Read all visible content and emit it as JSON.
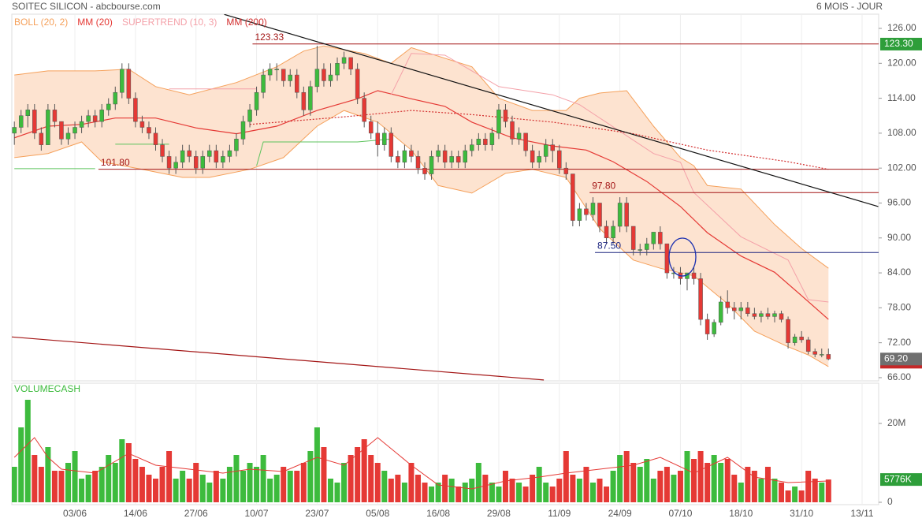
{
  "header": {
    "title": "SOITEC SILICON - abcbourse.com",
    "period": "6 MOIS - JOUR"
  },
  "chart_data": [
    {
      "type": "candlestick",
      "categories": [
        null,
        null,
        null,
        null,
        null,
        null,
        null,
        null,
        null,
        "03/06",
        null,
        null,
        null,
        null,
        null,
        null,
        null,
        null,
        "14/06",
        null,
        null,
        null,
        null,
        null,
        null,
        null,
        null,
        "27/06",
        null,
        null,
        null,
        null,
        null,
        null,
        null,
        null,
        "10/07",
        null,
        null,
        null,
        null,
        null,
        null,
        null,
        null,
        "23/07",
        null,
        null,
        null,
        null,
        null,
        null,
        null,
        null,
        "05/08",
        null,
        null,
        null,
        null,
        null,
        null,
        null,
        null,
        "16/08",
        null,
        null,
        null,
        null,
        null,
        null,
        null,
        null,
        "29/08",
        null,
        null,
        null,
        null,
        null,
        null,
        null,
        null,
        "11/09",
        null,
        null,
        null,
        null,
        null,
        null,
        null,
        null,
        "24/09",
        null,
        null,
        null,
        null,
        null,
        null,
        null,
        null,
        "07/10",
        null,
        null,
        null,
        null,
        null,
        null,
        null,
        null,
        "18/10",
        null,
        null,
        null,
        null,
        null,
        null,
        null,
        null,
        "31/10",
        null,
        null,
        null,
        null,
        null,
        null,
        null,
        null,
        "13/11"
      ],
      "open": [
        108,
        109,
        111,
        112,
        108,
        106,
        112,
        110,
        107,
        108,
        109,
        110,
        111,
        110,
        112,
        113,
        115,
        119,
        114,
        110,
        109,
        108,
        106,
        104,
        102,
        103,
        105,
        104,
        102,
        104,
        105,
        103,
        104,
        105,
        107,
        110,
        112,
        115,
        118,
        119,
        119,
        117,
        118,
        115,
        112,
        116,
        119,
        117,
        118,
        120,
        121,
        119,
        114,
        110,
        108,
        106,
        108,
        104,
        103,
        105,
        104,
        102,
        101,
        104,
        105,
        103,
        104,
        103,
        105,
        106,
        107,
        106,
        108,
        112,
        110,
        107,
        108,
        105,
        103,
        104,
        106,
        105,
        102,
        101,
        93,
        95,
        94,
        96,
        92,
        90,
        92,
        96,
        92,
        88,
        88,
        89,
        91,
        89,
        84,
        84,
        83,
        84,
        83,
        76,
        73.5,
        75.5,
        79,
        78,
        77.5,
        78,
        77,
        76.5,
        77,
        76.5,
        77,
        76,
        72,
        73,
        72.5,
        70.5,
        70,
        70,
        null,
        null,
        null,
        null,
        null
      ],
      "high": [
        110,
        112,
        113,
        113,
        109,
        113,
        113,
        110,
        109,
        110,
        111,
        112,
        112,
        113,
        114,
        116,
        120,
        120,
        115,
        111,
        110,
        109,
        107,
        105,
        104,
        106,
        106,
        105,
        105,
        106,
        106,
        105,
        106,
        108,
        111,
        113,
        116,
        119,
        120,
        120,
        119,
        119,
        119,
        116,
        117,
        123,
        120,
        120,
        121,
        122,
        121,
        120,
        115,
        111,
        110,
        109,
        109,
        105,
        106,
        106,
        105,
        103,
        105,
        106,
        106,
        105,
        105,
        106,
        107,
        108,
        108,
        109,
        113,
        113,
        111,
        109,
        108,
        106,
        105,
        107,
        107,
        106,
        103,
        101,
        96,
        96,
        97,
        96,
        93,
        93,
        97,
        97,
        92,
        89,
        90,
        91,
        92,
        89,
        85,
        85,
        84,
        85,
        84,
        77,
        76,
        80,
        81,
        79,
        79,
        79,
        78,
        77.5,
        78,
        77.5,
        77.5,
        76.5,
        73.5,
        74,
        73,
        71,
        71,
        71,
        null,
        null,
        null,
        null,
        null
      ],
      "low": [
        106,
        108,
        109,
        107,
        105,
        106,
        109,
        106,
        106,
        107,
        108,
        109,
        109,
        109,
        111,
        112,
        114,
        113,
        109,
        108,
        107,
        105,
        103,
        101,
        101,
        102,
        103,
        101,
        101,
        103,
        102,
        102,
        103,
        104,
        106,
        109,
        111,
        114,
        117,
        117,
        116,
        116,
        114,
        111,
        111,
        115,
        116,
        116,
        117,
        119,
        118,
        113,
        109,
        107,
        104,
        105,
        103,
        102,
        102,
        103,
        101,
        100,
        100,
        103,
        102,
        102,
        102,
        102,
        104,
        105,
        105,
        105,
        107,
        109,
        106,
        106,
        104,
        102,
        102,
        103,
        103,
        101,
        100,
        92,
        92,
        93,
        93,
        91,
        89,
        89,
        91,
        91,
        87,
        87,
        87,
        88,
        88,
        83,
        83,
        82,
        81,
        82,
        75,
        72.5,
        73,
        75,
        77,
        76,
        76,
        76.5,
        76,
        75.5,
        76,
        75.5,
        75.5,
        71,
        71.5,
        72,
        70,
        69.5,
        69.5,
        69,
        null,
        null,
        null,
        null,
        null
      ],
      "close": [
        109,
        111,
        112,
        108,
        106,
        112,
        110,
        107,
        108,
        109,
        110,
        111,
        110,
        112,
        113,
        115,
        119,
        114,
        110,
        109,
        108,
        106,
        104,
        102,
        103,
        105,
        104,
        102,
        104,
        105,
        103,
        104,
        105,
        107,
        110,
        112,
        115,
        118,
        119,
        119,
        117,
        118,
        115,
        112,
        116,
        119,
        117,
        118,
        120,
        121,
        119,
        114,
        110,
        108,
        106,
        108,
        104,
        103,
        105,
        104,
        102,
        101,
        104,
        105,
        103,
        104,
        103,
        105,
        106,
        107,
        106,
        108,
        112,
        110,
        107,
        108,
        105,
        103,
        104,
        106,
        105,
        102,
        101,
        93,
        95,
        94,
        96,
        92,
        90,
        92,
        96,
        92,
        88,
        88,
        89,
        91,
        89,
        84,
        84,
        83,
        84,
        83,
        76,
        73.5,
        75.5,
        79,
        78,
        77.5,
        78,
        77,
        76.5,
        77,
        76.5,
        77,
        76,
        72,
        73,
        72.5,
        70.5,
        70,
        70,
        69.2,
        null,
        null,
        null,
        null,
        null
      ],
      "up_color": "#3dbb3d",
      "down_color": "#e53935",
      "ylim": [
        65.45,
        128.44
      ],
      "yticks": [
        {
          "value": 66,
          "label": "66.00"
        },
        {
          "value": 72,
          "label": "72.00"
        },
        {
          "value": 78,
          "label": "78.00"
        },
        {
          "value": 84,
          "label": "84.00"
        },
        {
          "value": 90,
          "label": "90.00"
        },
        {
          "value": 96,
          "label": "96.00"
        },
        {
          "value": 102,
          "label": "102.00"
        },
        {
          "value": 108,
          "label": "108.00"
        },
        {
          "value": 114,
          "label": "114.00"
        },
        {
          "value": 120,
          "label": "120.00"
        },
        {
          "value": 126,
          "label": "126.00"
        }
      ],
      "xgrid": true,
      "indicators": [
        {
          "name": "BOLL (20, 2)",
          "kind": "band",
          "color": "#f5a05a",
          "fill": "#fde3d0",
          "upper": {
            "x": [
              0,
              5,
              12,
              17,
              21,
              26,
              33,
              39,
              43,
              46,
              52,
              56,
              59,
              68,
              72,
              77,
              82,
              84,
              87,
              91,
              95,
              99,
              101,
              103,
              108,
              113,
              117,
              121
            ],
            "values": [
              118,
              118.7,
              118.7,
              119,
              116,
              114.6,
              116.7,
              119.4,
              122.1,
              123,
              121.7,
              120,
              122.7,
              119.4,
              114,
              111.9,
              111.9,
              114,
              114.9,
              115.3,
              109.2,
              103.8,
              102.4,
              99,
              98.4,
              92.3,
              88.2,
              84.8
            ]
          },
          "lower": {
            "x": [
              0,
              5,
              10,
              13,
              19,
              25,
              29,
              35,
              40,
              45,
              49,
              54,
              59,
              63,
              68,
              73,
              77,
              82,
              87,
              92,
              96,
              101,
              106,
              110,
              115,
              118,
              121
            ],
            "values": [
              103.8,
              104.5,
              106.5,
              103.1,
              101.8,
              100.4,
              100.4,
              101.8,
              103.8,
              109.2,
              111.9,
              109.9,
              105.1,
              99,
              97.7,
              101.1,
              101.8,
              100.4,
              91.6,
              86.2,
              84.8,
              83.5,
              78.7,
              74,
              71.3,
              69.9,
              67.9
            ]
          }
        },
        {
          "name": "MM (20)",
          "kind": "line",
          "color": "#e53935",
          "x": [
            0,
            5,
            10,
            15,
            21,
            27,
            33,
            39,
            45,
            51,
            54,
            59,
            64,
            68,
            74,
            80,
            85,
            89,
            94,
            99,
            103,
            108,
            113,
            117,
            121
          ],
          "values": [
            107.2,
            109.2,
            109.5,
            110.6,
            110.6,
            108.9,
            107.9,
            109.2,
            111.9,
            113.9,
            115.3,
            113.9,
            112.6,
            109.9,
            107.2,
            105.8,
            105.1,
            103.1,
            99.7,
            95.4,
            90.9,
            86.9,
            84.1,
            80.1,
            76
          ]
        },
        {
          "name": "SUPERTREND (10, 3)",
          "kind": "supertrend",
          "color": "#f4a0a8",
          "support_color": "#5cc35c",
          "support": {
            "x": [
              0,
              12,
              13,
              15,
              23,
              24,
              36,
              37,
              51,
              56
            ],
            "values": [
              101.9,
              101.9,
              null,
              106.1,
              106.1,
              null,
              102.4,
              106.5,
              106.5,
              107
            ]
          },
          "resistance": {
            "x": [
              23,
              36,
              37,
              56,
              59,
              64,
              68,
              72,
              80,
              84,
              95,
              99,
              101,
              108,
              115,
              118,
              121
            ],
            "values": [
              115.6,
              115.6,
              null,
              114.6,
              121.7,
              121.4,
              118.7,
              116,
              114.6,
              112.9,
              104.5,
              103,
              97.8,
              90.2,
              86.2,
              79.4,
              79
            ]
          }
        },
        {
          "name": "MM (200)",
          "kind": "dashed",
          "color": "#d32f2f",
          "x": [
            35,
            49,
            59,
            68,
            80,
            92,
            103,
            115,
            121
          ],
          "values": [
            109.5,
            110.8,
            111.9,
            111.2,
            109.9,
            107.9,
            105.1,
            103.1,
            101.8
          ]
        }
      ],
      "levels": [
        {
          "value": 123.33,
          "label": "123.33",
          "from": 35.4,
          "color": "#a31515"
        },
        {
          "value": 101.8,
          "label": "101.80",
          "from": 12.5,
          "color": "#a31515"
        },
        {
          "value": 97.8,
          "label": "97.80",
          "from": 85.5,
          "color": "#a31515"
        },
        {
          "value": 87.5,
          "label": "87.50",
          "from": 86.3,
          "color": "#1a237e"
        }
      ],
      "trendlines": [
        {
          "x": [
            31.2,
            128.4
          ],
          "values": [
            128.4,
            95.4
          ],
          "color": "#111"
        },
        {
          "x": [
            -0.4,
            78.7
          ],
          "values": [
            73,
            65.6
          ],
          "color": "#a31515"
        }
      ],
      "price_labels": [
        {
          "value": 123.3,
          "label": "123.30",
          "color": "#2e9e3a"
        },
        {
          "value": 69.2,
          "label": "69.20",
          "color": "#6f6f6f"
        }
      ]
    },
    {
      "type": "bar",
      "title": "VOLUMECASH",
      "values": [
        9,
        19,
        26,
        12,
        9,
        14,
        8,
        8,
        10,
        13,
        6,
        7,
        8,
        9,
        12,
        10,
        16,
        15,
        11,
        9,
        7,
        6,
        9,
        13,
        6,
        8,
        6,
        10,
        7,
        5,
        8,
        6,
        9,
        12,
        8,
        10,
        9,
        12,
        6,
        7,
        9,
        8,
        8,
        10,
        13,
        19,
        14,
        6,
        5,
        10,
        12,
        14,
        16,
        12,
        10,
        8,
        6,
        7,
        5,
        10,
        7,
        5,
        4,
        5,
        7,
        6,
        4,
        5,
        6,
        10,
        7,
        5,
        4,
        8,
        6,
        5,
        4,
        7,
        9,
        5,
        4,
        6,
        13,
        7,
        6,
        9,
        5,
        6,
        4,
        8,
        12,
        13,
        10,
        9,
        11,
        6,
        8,
        9,
        7,
        8,
        13,
        11,
        13,
        10,
        12,
        10,
        11,
        7,
        5,
        9,
        8,
        6,
        9,
        6,
        5,
        3,
        4,
        3,
        8,
        6,
        5,
        5.776,
        null,
        null,
        null,
        null,
        null
      ],
      "ylim": [
        0,
        29.8
      ],
      "yticks": [
        0,
        {
          "value": 20,
          "label": "20M"
        }
      ],
      "ma": {
        "color": "#e53935",
        "x": [
          0,
          3,
          5,
          7,
          12,
          17,
          21,
          26,
          31,
          35,
          40,
          45,
          49,
          54,
          59,
          63,
          68,
          73,
          78,
          82,
          87,
          92,
          96,
          101,
          106,
          110,
          115,
          121
        ],
        "values": [
          11.4,
          16.4,
          11.4,
          8.4,
          7.4,
          12.4,
          9.4,
          8.4,
          7.4,
          8.4,
          7.8,
          11.4,
          9.4,
          16.4,
          9.4,
          4.4,
          3.4,
          5.4,
          6.4,
          7.4,
          8.4,
          9.4,
          11.4,
          7.4,
          11.4,
          6.4,
          5,
          5.4
        ]
      },
      "last_label": {
        "value": 5.776,
        "label": "5776K",
        "color": "#2e9e3a"
      }
    }
  ]
}
